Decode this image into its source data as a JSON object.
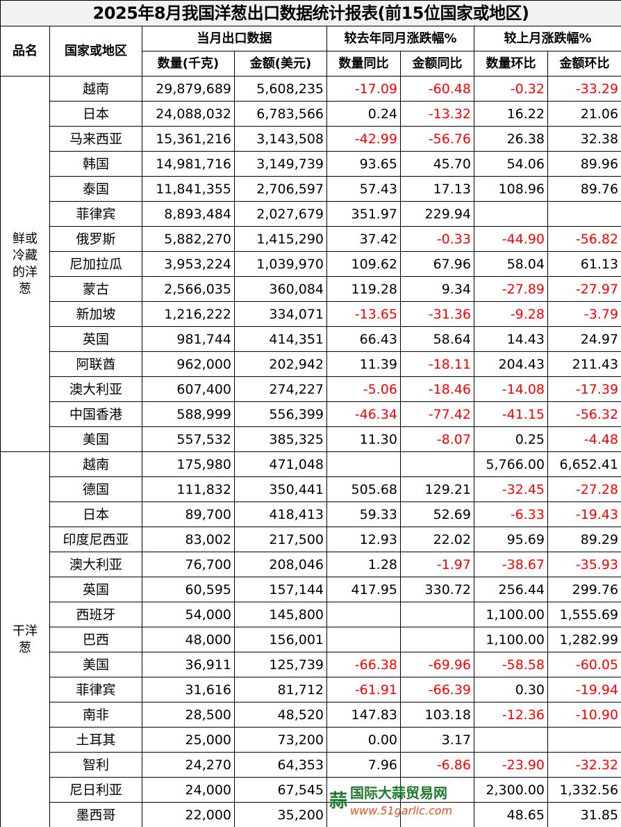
{
  "title": "2025年8月我国洋葱出口数据统计报表(前15位国家或地区)",
  "headers": {
    "product": "品名",
    "country": "国家或地区",
    "group_current": "当月出口数据",
    "group_yoy": "较去年同月涨跌幅%",
    "group_mom": "较上月涨跌幅%",
    "qty": "数量(千克)",
    "amount": "金额(美元)",
    "qty_yoy": "数量同比",
    "amount_yoy": "金额同比",
    "qty_mom": "数量环比",
    "amount_mom": "金额环比"
  },
  "negative_color": "#ff0000",
  "groups": [
    {
      "product": "鲜或冷藏的洋葱",
      "rows": [
        [
          "越南",
          "29,879,689",
          "5,608,235",
          "-17.09",
          "-60.48",
          "-0.32",
          "-33.29"
        ],
        [
          "日本",
          "24,088,032",
          "6,783,566",
          "0.24",
          "-13.32",
          "16.22",
          "21.06"
        ],
        [
          "马来西亚",
          "15,361,216",
          "3,143,508",
          "-42.99",
          "-56.76",
          "26.38",
          "32.38"
        ],
        [
          "韩国",
          "14,981,716",
          "3,149,739",
          "93.65",
          "45.70",
          "54.06",
          "89.96"
        ],
        [
          "泰国",
          "11,841,355",
          "2,706,597",
          "57.43",
          "17.13",
          "108.96",
          "89.76"
        ],
        [
          "菲律宾",
          "8,893,484",
          "2,027,679",
          "351.97",
          "229.94",
          "",
          ""
        ],
        [
          "俄罗斯",
          "5,882,270",
          "1,415,290",
          "37.42",
          "-0.33",
          "-44.90",
          "-56.82"
        ],
        [
          "尼加拉瓜",
          "3,953,224",
          "1,039,970",
          "109.62",
          "67.96",
          "58.04",
          "61.13"
        ],
        [
          "蒙古",
          "2,566,035",
          "360,084",
          "119.28",
          "9.34",
          "-27.89",
          "-27.97"
        ],
        [
          "新加坡",
          "1,216,222",
          "334,071",
          "-13.65",
          "-31.36",
          "-9.28",
          "-3.79"
        ],
        [
          "英国",
          "981,744",
          "414,351",
          "66.43",
          "58.64",
          "14.43",
          "24.97"
        ],
        [
          "阿联酋",
          "962,000",
          "202,942",
          "11.39",
          "-18.11",
          "204.43",
          "211.43"
        ],
        [
          "澳大利亚",
          "607,400",
          "274,227",
          "-5.06",
          "-18.46",
          "-14.08",
          "-17.39"
        ],
        [
          "中国香港",
          "588,999",
          "556,399",
          "-46.34",
          "-77.42",
          "-41.15",
          "-56.32"
        ],
        [
          "美国",
          "557,532",
          "385,325",
          "11.30",
          "-8.07",
          "0.25",
          "-4.48"
        ]
      ]
    },
    {
      "product": "干洋葱",
      "rows": [
        [
          "越南",
          "175,980",
          "471,048",
          "",
          "",
          "5,766.00",
          "6,652.41"
        ],
        [
          "德国",
          "111,832",
          "350,441",
          "505.68",
          "129.21",
          "-32.45",
          "-27.28"
        ],
        [
          "日本",
          "89,700",
          "418,413",
          "59.33",
          "52.69",
          "-6.33",
          "-19.43"
        ],
        [
          "印度尼西亚",
          "83,002",
          "217,500",
          "12.93",
          "22.02",
          "95.69",
          "89.29"
        ],
        [
          "澳大利亚",
          "76,700",
          "208,046",
          "1.28",
          "-1.97",
          "-38.67",
          "-35.93"
        ],
        [
          "英国",
          "60,595",
          "157,144",
          "417.95",
          "330.72",
          "256.44",
          "299.76"
        ],
        [
          "西班牙",
          "54,000",
          "145,800",
          "",
          "",
          "1,100.00",
          "1,555.69"
        ],
        [
          "巴西",
          "48,000",
          "156,001",
          "",
          "",
          "1,100.00",
          "1,282.99"
        ],
        [
          "美国",
          "36,911",
          "125,739",
          "-66.38",
          "-69.96",
          "-58.58",
          "-60.05"
        ],
        [
          "菲律宾",
          "31,616",
          "81,712",
          "-61.91",
          "-66.39",
          "0.30",
          "-19.94"
        ],
        [
          "南非",
          "28,500",
          "48,520",
          "147.83",
          "103.18",
          "-12.36",
          "-10.90"
        ],
        [
          "土耳其",
          "25,000",
          "73,200",
          "0.00",
          "3.17",
          "",
          ""
        ],
        [
          "智利",
          "24,270",
          "64,353",
          "7.96",
          "-6.86",
          "-23.90",
          "-32.32"
        ],
        [
          "尼日利亚",
          "24,000",
          "67,545",
          "",
          "",
          "2,300.00",
          "1,332.56"
        ],
        [
          "墨西哥",
          "22,000",
          "35,200",
          "",
          "",
          "48.65",
          "31.85"
        ]
      ]
    }
  ],
  "watermark": {
    "name": "国际大蒜贸易网",
    "url": "www.51garlic.com"
  }
}
